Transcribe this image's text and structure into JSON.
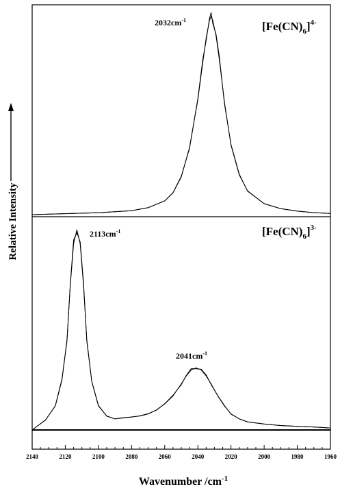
{
  "chart_data": [
    {
      "type": "line",
      "panel": "top",
      "compound": {
        "base": "[Fe(CN)",
        "sub": "6",
        "close": "]",
        "sup": "4-"
      },
      "peak_label": {
        "value": "2032cm",
        "sup": "-1"
      },
      "xlim": [
        2140,
        1960
      ],
      "x_direction": "reversed",
      "y_ticks": "none",
      "series": [
        {
          "x": [
            2140,
            2100,
            2080,
            2070,
            2060,
            2055,
            2050,
            2045,
            2040,
            2037,
            2035,
            2033,
            2032,
            2031,
            2029,
            2027,
            2024,
            2020,
            2015,
            2010,
            2000,
            1990,
            1980,
            1970,
            1960
          ],
          "values": [
            0.0,
            0.01,
            0.02,
            0.035,
            0.07,
            0.11,
            0.19,
            0.34,
            0.58,
            0.77,
            0.89,
            0.98,
            1.0,
            0.98,
            0.9,
            0.78,
            0.57,
            0.35,
            0.2,
            0.12,
            0.055,
            0.03,
            0.018,
            0.01,
            0.006
          ]
        }
      ]
    },
    {
      "type": "line",
      "panel": "bottom",
      "compound": {
        "base": "[Fe(CN)",
        "sub": "6",
        "close": "]",
        "sup": "3-"
      },
      "peak_labels": [
        {
          "value": "2113cm",
          "sup": "-1"
        },
        {
          "value": "2041cm",
          "sup": "-1"
        }
      ],
      "xlabel": {
        "text": "Wavenumber /cm",
        "sup": "-1"
      },
      "ylabel": "Relative Intensity",
      "xlim": [
        2140,
        1960
      ],
      "x_direction": "reversed",
      "x_ticks": [
        2140,
        2120,
        2100,
        2080,
        2060,
        2040,
        2020,
        2000,
        1980,
        1960
      ],
      "series": [
        {
          "x": [
            2140,
            2132,
            2126,
            2122,
            2119,
            2117,
            2115,
            2113,
            2111,
            2109,
            2107,
            2104,
            2100,
            2095,
            2090,
            2085,
            2080,
            2075,
            2070,
            2065,
            2060,
            2055,
            2050,
            2047,
            2044,
            2041,
            2038,
            2035,
            2032,
            2028,
            2024,
            2020,
            2015,
            2010,
            2000,
            1990,
            1980,
            1970,
            1960
          ],
          "values": [
            0.0,
            0.05,
            0.12,
            0.25,
            0.45,
            0.72,
            0.93,
            1.0,
            0.93,
            0.72,
            0.45,
            0.24,
            0.12,
            0.07,
            0.055,
            0.06,
            0.065,
            0.07,
            0.08,
            0.1,
            0.13,
            0.17,
            0.23,
            0.27,
            0.3,
            0.31,
            0.3,
            0.27,
            0.23,
            0.17,
            0.12,
            0.08,
            0.055,
            0.04,
            0.03,
            0.022,
            0.018,
            0.015,
            0.01
          ]
        }
      ]
    }
  ]
}
